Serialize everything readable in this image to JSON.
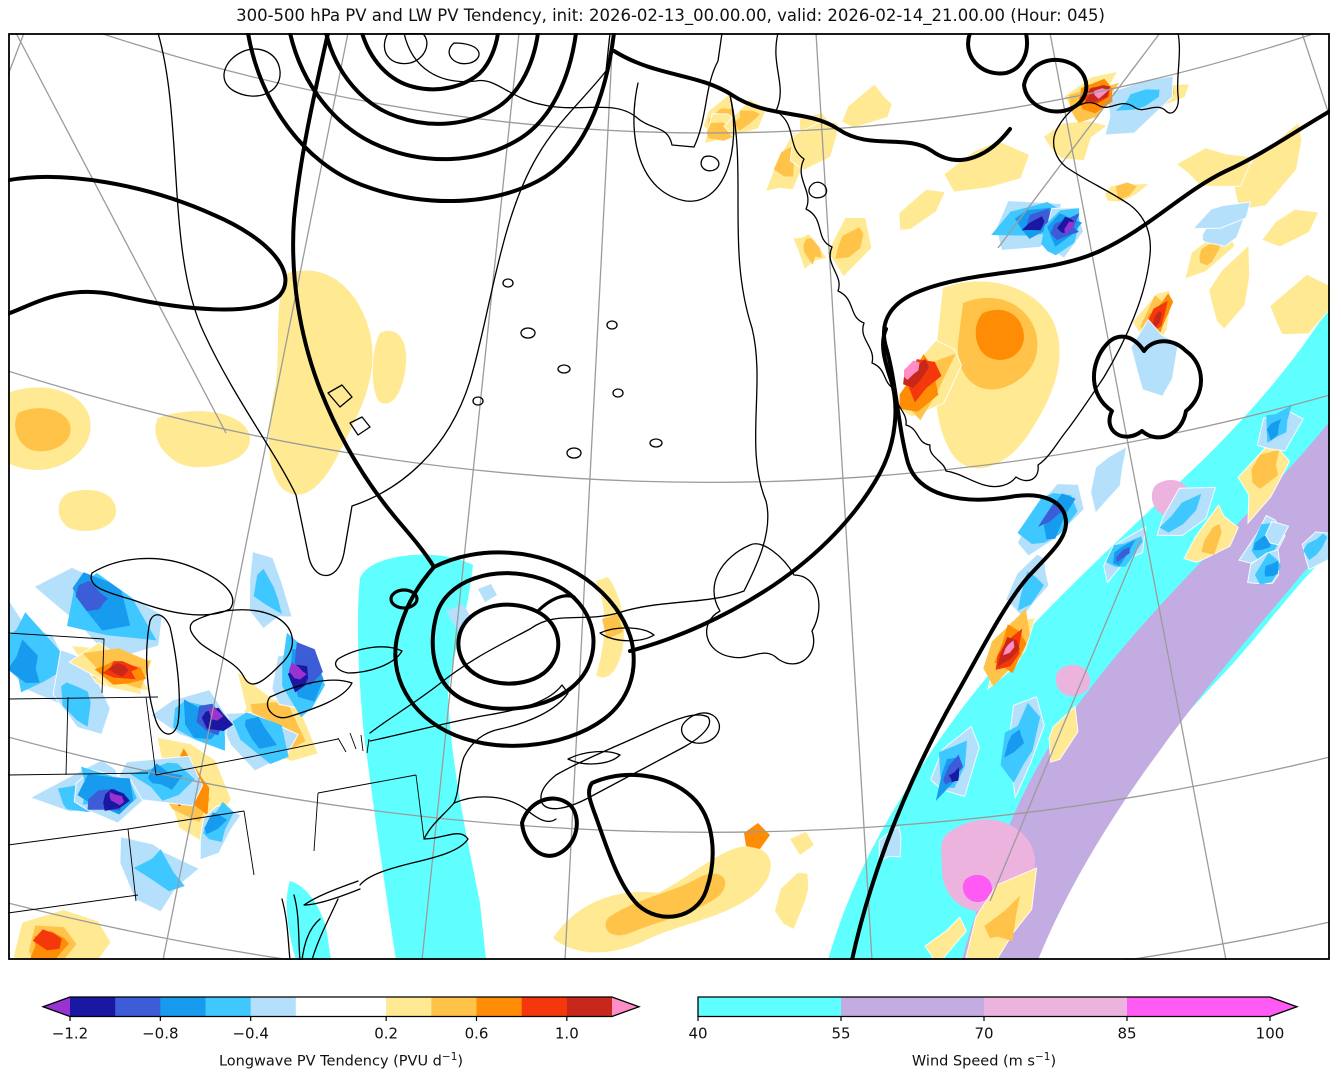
{
  "title": "300-500 hPa PV and LW PV Tendency, init: 2026-02-13_00.00.00, valid: 2026-02-14_21.00.00 (Hour: 045)",
  "colorbars": {
    "lw_pv_tendency": {
      "label_prefix": "Longwave PV Tendency (PVU d",
      "label_sup": "−1",
      "label_suffix": ")",
      "boundaries": [
        -1.2,
        -1.0,
        -0.8,
        -0.6,
        -0.4,
        -0.2,
        0.2,
        0.4,
        0.6,
        0.8,
        1.0,
        1.2
      ],
      "colors": [
        "#1A18A2",
        "#3C5CD8",
        "#169BEE",
        "#3FC8FF",
        "#B5E0FB",
        "#FFFFFF",
        "#FFE992",
        "#FFC34A",
        "#FF8C05",
        "#F5380B",
        "#C7281B"
      ],
      "extend_low_color": "#9A31D1",
      "extend_high_color": "#FF8EC6",
      "ticks": [
        "−1.2",
        "−0.8",
        "−0.4",
        "0.2",
        "0.6",
        "1.0"
      ],
      "tick_values": [
        -1.2,
        -0.8,
        -0.4,
        0.2,
        0.6,
        1.0
      ]
    },
    "wind_speed": {
      "label_prefix": "Wind Speed (m s",
      "label_sup": "−1",
      "label_suffix": ")",
      "boundaries": [
        40,
        55,
        70,
        85,
        100
      ],
      "colors": [
        "#5FFFFF",
        "#C2ACE1",
        "#ECB3DF",
        "#FF5AF3"
      ],
      "extend_high_color": "#FF5AF3",
      "ticks": [
        "40",
        "55",
        "70",
        "85",
        "100"
      ],
      "tick_values": [
        40,
        55,
        70,
        85,
        100
      ]
    }
  },
  "chart_data": {
    "type": "heatmap",
    "title": "300-500 hPa PV and LW PV Tendency, init: 2026-02-13_00.00.00, valid: 2026-02-14_21.00.00 (Hour: 045)",
    "init_time": "2026-02-13_00.00.00",
    "valid_time": "2026-02-14_21.00.00",
    "forecast_hour": "045",
    "fields": [
      {
        "name": "Longwave PV Tendency",
        "units": "PVU d-1",
        "render": "filled contours",
        "levels": [
          -1.2,
          -1.0,
          -0.8,
          -0.6,
          -0.4,
          -0.2,
          0.2,
          0.4,
          0.6,
          0.8,
          1.0,
          1.2
        ],
        "colors": [
          "#1A18A2",
          "#3C5CD8",
          "#169BEE",
          "#3FC8FF",
          "#B5E0FB",
          "#FFFFFF",
          "#FFE992",
          "#FFC34A",
          "#FF8C05",
          "#F5380B",
          "#C7281B"
        ],
        "below_range_color": "#9A31D1",
        "above_range_color": "#FF8EC6"
      },
      {
        "name": "Wind Speed",
        "units": "m s-1",
        "render": "filled contours",
        "levels": [
          40,
          55,
          70,
          85,
          100
        ],
        "colors": [
          "#5FFFFF",
          "#C2ACE1",
          "#ECB3DF",
          "#FF5AF3"
        ],
        "above_range_color": "#FF5AF3"
      },
      {
        "name": "300-500 hPa PV",
        "units": "PVU",
        "render": "bold black line contours, unlabeled",
        "levels_labeled": false
      }
    ],
    "map_region": "Northeastern North America, Hudson Bay, Greenland and the western North Atlantic (Lambert-type projection with gray graticule)",
    "features": [
      "Nested bold PV contours of the polar vortex along the top-center edge",
      "Cutoff PV maximum with three concentric bold contours over the Quebec/Maine border, flanked on its west by a narrow 40+ m/s cyan wind band",
      "Large bold PV trough contour over the Labrador Sea with an inner closed contour around an orange tendency maximum",
      "Closed bold PV contour southeast of Nova Scotia with yellow-orange tendency patches",
      "Strong jet streak arcing SW-NE across the North Atlantic: cyan (40-55 m/s) band with 55-70 m/s lavender core and 70+ m/s pink/magenta patches",
      "Noisy dipole field of positive (orange/red/pink) and negative (blue/purple) longwave PV tendency along the jet, over the U.S. Midwest, and near Iceland"
    ]
  }
}
